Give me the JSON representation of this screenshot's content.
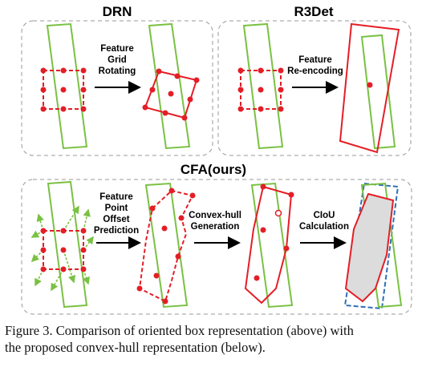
{
  "panels": {
    "drn": {
      "title": "DRN",
      "step": [
        "Feature",
        "Grid",
        "Rotating"
      ]
    },
    "r3det": {
      "title": "R3Det",
      "step": [
        "Feature",
        "Re-encoding"
      ]
    },
    "cfa": {
      "title": "CFA(ours)",
      "steps": [
        [
          "Feature",
          "Point",
          "Offset",
          "Prediction"
        ],
        [
          "Convex-hull",
          "Generation"
        ],
        [
          "CIoU",
          "Calculation"
        ]
      ]
    }
  },
  "caption": {
    "line1": "Figure 3. Comparison of oriented box representation (above) with",
    "line2": "the proposed convex-hull representation (below)."
  },
  "colors": {
    "box": "#7ac143",
    "points": "#e41e26",
    "hull_fill": "#dcdcdc",
    "hull_blue": "#2f6fb5",
    "panel_border": "#999999"
  }
}
